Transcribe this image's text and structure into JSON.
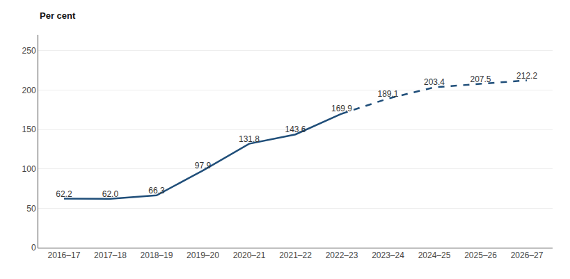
{
  "chart_data": {
    "type": "line",
    "ylabel": "Per cent",
    "categories": [
      "2016–17",
      "2017–18",
      "2018–19",
      "2019–20",
      "2020–21",
      "2021–22",
      "2022–23",
      "2023–24",
      "2024–25",
      "2025–26",
      "2026–27"
    ],
    "series": [
      {
        "color": "#1f4e79",
        "line_style": "solid",
        "values": [
          62.2,
          62.0,
          66.3,
          97.9,
          131.8,
          143.6,
          169.9,
          null,
          null,
          null,
          null
        ],
        "value_labels": [
          "62.2",
          "62.0",
          "66.3",
          "97.9",
          "131.8",
          "143.6",
          "169.9",
          null,
          null,
          null,
          null
        ]
      },
      {
        "color": "#1f4e79",
        "line_style": "dashed",
        "values": [
          null,
          null,
          null,
          null,
          null,
          null,
          169.9,
          189.1,
          203.4,
          207.5,
          212.2
        ],
        "value_labels": [
          null,
          null,
          null,
          null,
          null,
          null,
          "169.9",
          "189.1",
          "203.4",
          "207.5",
          "212.2"
        ]
      }
    ],
    "ylim": [
      0,
      270
    ],
    "yticks": [
      0,
      50,
      100,
      150,
      200,
      250
    ],
    "grid": true,
    "data_labels": true
  }
}
